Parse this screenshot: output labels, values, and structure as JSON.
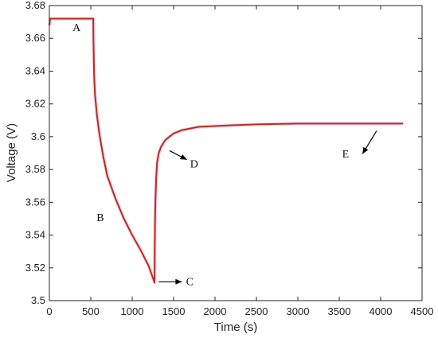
{
  "chart_data": {
    "type": "line",
    "title": "",
    "xlabel": "Time (s)",
    "ylabel": "Voltage (V)",
    "xlim": [
      0,
      4500
    ],
    "ylim": [
      3.5,
      3.68
    ],
    "xticks": [
      "0",
      "500",
      "1000",
      "1500",
      "2000",
      "2500",
      "3000",
      "3500",
      "4000",
      "4500"
    ],
    "yticks": [
      "3.5",
      "3.52",
      "3.54",
      "3.56",
      "3.58",
      "3.6",
      "3.62",
      "3.64",
      "3.66",
      "3.68"
    ],
    "grid": false,
    "line_color": "#b5301c",
    "series": [
      {
        "x": [
          0,
          10,
          530,
          532,
          540,
          550,
          575,
          600,
          650,
          700,
          800,
          900,
          1000,
          1100,
          1200,
          1270,
          1272,
          1275,
          1280,
          1290,
          1300,
          1320,
          1350,
          1400,
          1450,
          1500,
          1600,
          1800,
          2000,
          2200,
          2500,
          3000,
          3500,
          4000,
          4270
        ],
        "y": [
          3.668,
          3.672,
          3.672,
          3.66,
          3.638,
          3.626,
          3.613,
          3.603,
          3.588,
          3.576,
          3.562,
          3.55,
          3.54,
          3.531,
          3.521,
          3.511,
          3.528,
          3.545,
          3.56,
          3.575,
          3.584,
          3.59,
          3.594,
          3.598,
          3.6,
          3.602,
          3.604,
          3.606,
          3.6065,
          3.607,
          3.6075,
          3.608,
          3.608,
          3.608,
          3.608
        ]
      }
    ],
    "annotations": [
      {
        "text": "A",
        "x": 280,
        "y": 3.6645
      },
      {
        "text": "B",
        "x": 570,
        "y": 3.5485
      },
      {
        "text": "C",
        "x": 1650,
        "y": 3.5095,
        "arrow_from": [
          1320,
          3.5115
        ],
        "arrow_to": [
          1600,
          3.5115
        ]
      },
      {
        "text": "D",
        "x": 1700,
        "y": 3.5812,
        "arrow_from": [
          1450,
          3.5915
        ],
        "arrow_to": [
          1660,
          3.586
        ]
      },
      {
        "text": "E",
        "x": 3535,
        "y": 3.5873,
        "arrow_from": [
          3950,
          3.6035
        ],
        "arrow_to": [
          3780,
          3.5895
        ]
      }
    ]
  }
}
